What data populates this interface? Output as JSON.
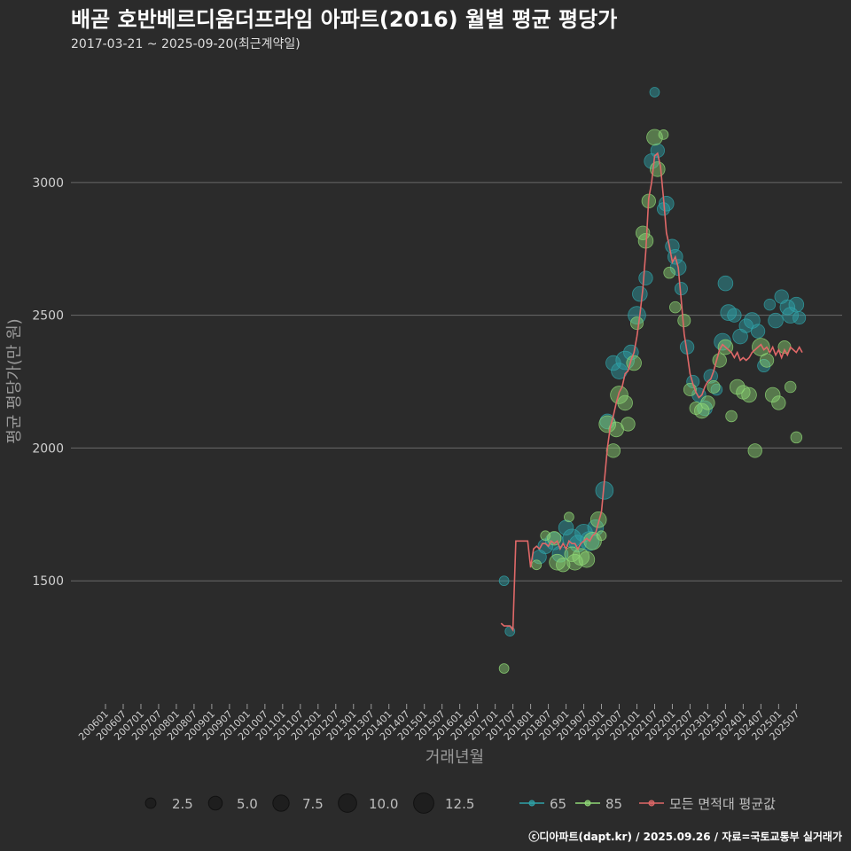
{
  "header": {
    "title": "배곧 호반베르디움더프라임 아파트(2016) 월별 평균 평당가",
    "subtitle": "2017-03-21 ~ 2025-09-20(최근계약일)"
  },
  "caption": "ⓒ디아파트(dapt.kr) / 2025.09.26 / 자료=국토교통부 실거래가",
  "colors": {
    "background": "#2b2b2b",
    "grid": "#6a6a6a",
    "s65": "#2fa2a8",
    "s85": "#8fd776",
    "avg": "#e06868"
  },
  "chart_data": {
    "type": "scatter",
    "title": "배곧 호반베르디움더프라임 아파트(2016) 월별 평균 평당가",
    "xlabel": "거래년월",
    "ylabel": "평균 평당가(만 원)",
    "ylim": [
      1050,
      3420
    ],
    "y_ticks": [
      1500,
      2000,
      2500,
      3000
    ],
    "x_tick_labels": [
      "200601",
      "200607",
      "200701",
      "200707",
      "200801",
      "200807",
      "200901",
      "200907",
      "201001",
      "201007",
      "201101",
      "201107",
      "201201",
      "201207",
      "201301",
      "201307",
      "201401",
      "201407",
      "201501",
      "201507",
      "201601",
      "201607",
      "201701",
      "201707",
      "201801",
      "201807",
      "201901",
      "201907",
      "202001",
      "202007",
      "202101",
      "202107",
      "202201",
      "202207",
      "202301",
      "202307",
      "202401",
      "202407",
      "202501",
      "202507"
    ],
    "legend": {
      "size_title": "",
      "size_values": [
        2.5,
        5.0,
        7.5,
        10.0,
        12.5
      ],
      "size_labels": [
        "2.5",
        "5.0",
        "7.5",
        "10.0",
        "12.5"
      ],
      "series_labels": [
        "65",
        "85",
        "모든 면적대 평균값"
      ]
    },
    "series": [
      {
        "name": "65",
        "points": [
          [
            "2017-04",
            1500,
            2
          ],
          [
            "2017-06",
            1310,
            2
          ],
          [
            "2018-04",
            1590,
            5
          ],
          [
            "2018-06",
            1630,
            6
          ],
          [
            "2018-09",
            1650,
            9
          ],
          [
            "2018-11",
            1600,
            7
          ],
          [
            "2019-01",
            1700,
            6
          ],
          [
            "2019-03",
            1660,
            10
          ],
          [
            "2019-05",
            1640,
            8
          ],
          [
            "2019-07",
            1680,
            9
          ],
          [
            "2019-09",
            1650,
            11
          ],
          [
            "2019-11",
            1700,
            7
          ],
          [
            "2020-02",
            1840,
            9
          ],
          [
            "2020-03",
            2100,
            6
          ],
          [
            "2020-05",
            2320,
            6
          ],
          [
            "2020-07",
            2290,
            7
          ],
          [
            "2020-09",
            2330,
            10
          ],
          [
            "2020-11",
            2360,
            6
          ],
          [
            "2021-01",
            2500,
            9
          ],
          [
            "2021-02",
            2580,
            6
          ],
          [
            "2021-04",
            2640,
            5
          ],
          [
            "2021-06",
            3080,
            6
          ],
          [
            "2021-07",
            3340,
            2
          ],
          [
            "2021-08",
            3120,
            5
          ],
          [
            "2021-10",
            2900,
            4
          ],
          [
            "2021-11",
            2920,
            6
          ],
          [
            "2022-01",
            2760,
            5
          ],
          [
            "2022-02",
            2720,
            6
          ],
          [
            "2022-03",
            2680,
            7
          ],
          [
            "2022-04",
            2600,
            4
          ],
          [
            "2022-06",
            2380,
            5
          ],
          [
            "2022-08",
            2250,
            4
          ],
          [
            "2022-10",
            2200,
            5
          ],
          [
            "2022-12",
            2150,
            6
          ],
          [
            "2023-02",
            2270,
            5
          ],
          [
            "2023-04",
            2220,
            3
          ],
          [
            "2023-06",
            2400,
            8
          ],
          [
            "2023-07",
            2620,
            6
          ],
          [
            "2023-08",
            2510,
            7
          ],
          [
            "2023-10",
            2500,
            5
          ],
          [
            "2023-12",
            2420,
            6
          ],
          [
            "2024-02",
            2460,
            5
          ],
          [
            "2024-04",
            2480,
            7
          ],
          [
            "2024-06",
            2440,
            5
          ],
          [
            "2024-08",
            2310,
            4
          ],
          [
            "2024-10",
            2540,
            3
          ],
          [
            "2024-12",
            2480,
            6
          ],
          [
            "2025-02",
            2570,
            5
          ],
          [
            "2025-04",
            2530,
            6
          ],
          [
            "2025-05",
            2500,
            7
          ],
          [
            "2025-07",
            2540,
            6
          ],
          [
            "2025-08",
            2490,
            4
          ]
        ]
      },
      {
        "name": "85",
        "points": [
          [
            "2017-04",
            1170,
            2
          ],
          [
            "2018-03",
            1560,
            2
          ],
          [
            "2018-06",
            1670,
            2
          ],
          [
            "2018-09",
            1660,
            5
          ],
          [
            "2018-10",
            1570,
            7
          ],
          [
            "2018-12",
            1560,
            5
          ],
          [
            "2019-02",
            1740,
            2
          ],
          [
            "2019-03",
            1600,
            6
          ],
          [
            "2019-04",
            1570,
            7
          ],
          [
            "2019-06",
            1590,
            8
          ],
          [
            "2019-08",
            1580,
            7
          ],
          [
            "2019-10",
            1650,
            9
          ],
          [
            "2019-12",
            1730,
            7
          ],
          [
            "2020-01",
            1670,
            2
          ],
          [
            "2020-03",
            2090,
            8
          ],
          [
            "2020-05",
            1990,
            5
          ],
          [
            "2020-06",
            2070,
            6
          ],
          [
            "2020-07",
            2200,
            9
          ],
          [
            "2020-09",
            2170,
            6
          ],
          [
            "2020-10",
            2090,
            5
          ],
          [
            "2020-12",
            2320,
            6
          ],
          [
            "2021-01",
            2470,
            4
          ],
          [
            "2021-03",
            2810,
            5
          ],
          [
            "2021-04",
            2780,
            6
          ],
          [
            "2021-05",
            2930,
            5
          ],
          [
            "2021-07",
            3170,
            7
          ],
          [
            "2021-08",
            3050,
            6
          ],
          [
            "2021-10",
            3180,
            2
          ],
          [
            "2021-12",
            2660,
            3
          ],
          [
            "2022-02",
            2530,
            3
          ],
          [
            "2022-05",
            2480,
            4
          ],
          [
            "2022-07",
            2220,
            4
          ],
          [
            "2022-09",
            2150,
            4
          ],
          [
            "2022-11",
            2140,
            6
          ],
          [
            "2023-01",
            2170,
            5
          ],
          [
            "2023-03",
            2230,
            4
          ],
          [
            "2023-05",
            2330,
            5
          ],
          [
            "2023-07",
            2380,
            6
          ],
          [
            "2023-09",
            2120,
            3
          ],
          [
            "2023-11",
            2230,
            6
          ],
          [
            "2024-01",
            2210,
            5
          ],
          [
            "2024-03",
            2200,
            6
          ],
          [
            "2024-05",
            1990,
            5
          ],
          [
            "2024-07",
            2380,
            9
          ],
          [
            "2024-09",
            2330,
            5
          ],
          [
            "2024-11",
            2200,
            6
          ],
          [
            "2025-01",
            2170,
            5
          ],
          [
            "2025-03",
            2380,
            4
          ],
          [
            "2025-05",
            2230,
            3
          ],
          [
            "2025-07",
            2040,
            3
          ]
        ]
      }
    ],
    "average": {
      "name": "모든 면적대 평균값",
      "points": [
        [
          "2017-03",
          1340
        ],
        [
          "2017-04",
          1330
        ],
        [
          "2017-05",
          1330
        ],
        [
          "2017-06",
          1330
        ],
        [
          "2017-07",
          1315
        ],
        [
          "2017-08",
          1650
        ],
        [
          "2017-09",
          1650
        ],
        [
          "2017-10",
          1650
        ],
        [
          "2017-11",
          1650
        ],
        [
          "2017-12",
          1650
        ],
        [
          "2018-01",
          1550
        ],
        [
          "2018-02",
          1620
        ],
        [
          "2018-03",
          1630
        ],
        [
          "2018-04",
          1620
        ],
        [
          "2018-05",
          1640
        ],
        [
          "2018-06",
          1640
        ],
        [
          "2018-07",
          1630
        ],
        [
          "2018-08",
          1650
        ],
        [
          "2018-09",
          1640
        ],
        [
          "2018-10",
          1650
        ],
        [
          "2018-11",
          1620
        ],
        [
          "2018-12",
          1640
        ],
        [
          "2019-01",
          1620
        ],
        [
          "2019-02",
          1650
        ],
        [
          "2019-03",
          1640
        ],
        [
          "2019-04",
          1640
        ],
        [
          "2019-05",
          1620
        ],
        [
          "2019-06",
          1640
        ],
        [
          "2019-07",
          1650
        ],
        [
          "2019-08",
          1660
        ],
        [
          "2019-09",
          1650
        ],
        [
          "2019-10",
          1670
        ],
        [
          "2019-11",
          1680
        ],
        [
          "2019-12",
          1720
        ],
        [
          "2020-01",
          1760
        ],
        [
          "2020-02",
          1880
        ],
        [
          "2020-03",
          2000
        ],
        [
          "2020-04",
          2080
        ],
        [
          "2020-05",
          2120
        ],
        [
          "2020-06",
          2170
        ],
        [
          "2020-07",
          2210
        ],
        [
          "2020-08",
          2230
        ],
        [
          "2020-09",
          2280
        ],
        [
          "2020-10",
          2290
        ],
        [
          "2020-11",
          2330
        ],
        [
          "2020-12",
          2360
        ],
        [
          "2021-01",
          2420
        ],
        [
          "2021-02",
          2500
        ],
        [
          "2021-03",
          2600
        ],
        [
          "2021-04",
          2740
        ],
        [
          "2021-05",
          2940
        ],
        [
          "2021-06",
          3000
        ],
        [
          "2021-07",
          3100
        ],
        [
          "2021-08",
          3110
        ],
        [
          "2021-09",
          3060
        ],
        [
          "2021-10",
          2940
        ],
        [
          "2021-11",
          2810
        ],
        [
          "2021-12",
          2760
        ],
        [
          "2022-01",
          2700
        ],
        [
          "2022-02",
          2720
        ],
        [
          "2022-03",
          2680
        ],
        [
          "2022-04",
          2560
        ],
        [
          "2022-05",
          2430
        ],
        [
          "2022-06",
          2360
        ],
        [
          "2022-07",
          2280
        ],
        [
          "2022-08",
          2240
        ],
        [
          "2022-09",
          2210
        ],
        [
          "2022-10",
          2190
        ],
        [
          "2022-11",
          2200
        ],
        [
          "2022-12",
          2230
        ],
        [
          "2023-01",
          2250
        ],
        [
          "2023-02",
          2260
        ],
        [
          "2023-03",
          2290
        ],
        [
          "2023-04",
          2330
        ],
        [
          "2023-05",
          2370
        ],
        [
          "2023-06",
          2390
        ],
        [
          "2023-07",
          2380
        ],
        [
          "2023-08",
          2370
        ],
        [
          "2023-09",
          2360
        ],
        [
          "2023-10",
          2340
        ],
        [
          "2023-11",
          2360
        ],
        [
          "2023-12",
          2330
        ],
        [
          "2024-01",
          2340
        ],
        [
          "2024-02",
          2330
        ],
        [
          "2024-03",
          2340
        ],
        [
          "2024-04",
          2360
        ],
        [
          "2024-05",
          2370
        ],
        [
          "2024-06",
          2380
        ],
        [
          "2024-07",
          2390
        ],
        [
          "2024-08",
          2370
        ],
        [
          "2024-09",
          2380
        ],
        [
          "2024-10",
          2360
        ],
        [
          "2024-11",
          2380
        ],
        [
          "2024-12",
          2350
        ],
        [
          "2025-01",
          2370
        ],
        [
          "2025-02",
          2340
        ],
        [
          "2025-03",
          2370
        ],
        [
          "2025-04",
          2350
        ],
        [
          "2025-05",
          2380
        ],
        [
          "2025-06",
          2370
        ],
        [
          "2025-07",
          2360
        ],
        [
          "2025-08",
          2380
        ],
        [
          "2025-09",
          2360
        ]
      ]
    }
  }
}
